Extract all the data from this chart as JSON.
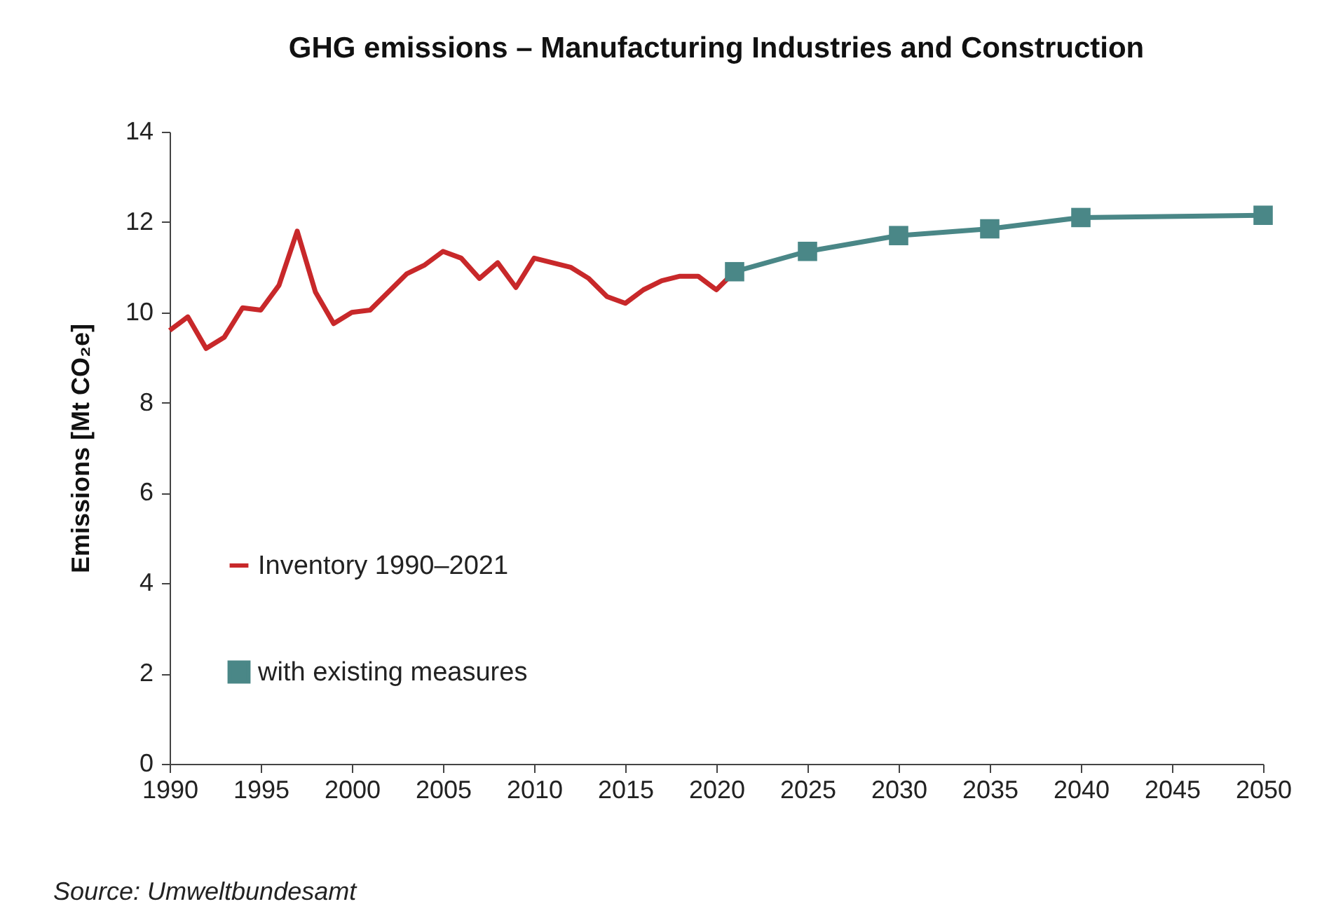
{
  "chart_data": {
    "type": "line",
    "title": "GHG emissions – Manufacturing Industries and Construction",
    "ylabel": "Emissions [Mt CO₂e]",
    "annotations": [
      "Source: Umweltbundesamt"
    ],
    "xlim": [
      1990,
      2050
    ],
    "xticks": [
      1990,
      1995,
      2000,
      2005,
      2010,
      2015,
      2020,
      2025,
      2030,
      2035,
      2040,
      2045,
      2050
    ],
    "ylim": [
      0,
      14
    ],
    "yticks": [
      0,
      2,
      4,
      6,
      8,
      10,
      12,
      14
    ],
    "grid": false,
    "legend": "left",
    "line_style": "solid",
    "series": [
      {
        "name": "Inventory 1990–2021",
        "color": "#c8282a",
        "marker": "none",
        "x": [
          1990,
          1991,
          1992,
          1993,
          1994,
          1995,
          1996,
          1997,
          1998,
          1999,
          2000,
          2001,
          2002,
          2003,
          2004,
          2005,
          2006,
          2007,
          2008,
          2009,
          2010,
          2011,
          2012,
          2013,
          2014,
          2015,
          2016,
          2017,
          2018,
          2019,
          2020,
          2021
        ],
        "values": [
          9.6,
          9.9,
          9.2,
          9.45,
          10.1,
          10.05,
          10.6,
          11.8,
          10.45,
          9.75,
          10.0,
          10.05,
          10.45,
          10.85,
          11.05,
          11.35,
          11.2,
          10.75,
          11.1,
          10.55,
          11.2,
          11.1,
          11.0,
          10.75,
          10.35,
          10.2,
          10.5,
          10.7,
          10.8,
          10.8,
          10.5,
          10.9
        ]
      },
      {
        "name": "with existing measures",
        "color": "#4a8787",
        "marker": "square",
        "x": [
          2021,
          2025,
          2030,
          2035,
          2040,
          2050
        ],
        "values": [
          10.9,
          11.35,
          11.7,
          11.85,
          12.1,
          12.15
        ]
      }
    ]
  }
}
